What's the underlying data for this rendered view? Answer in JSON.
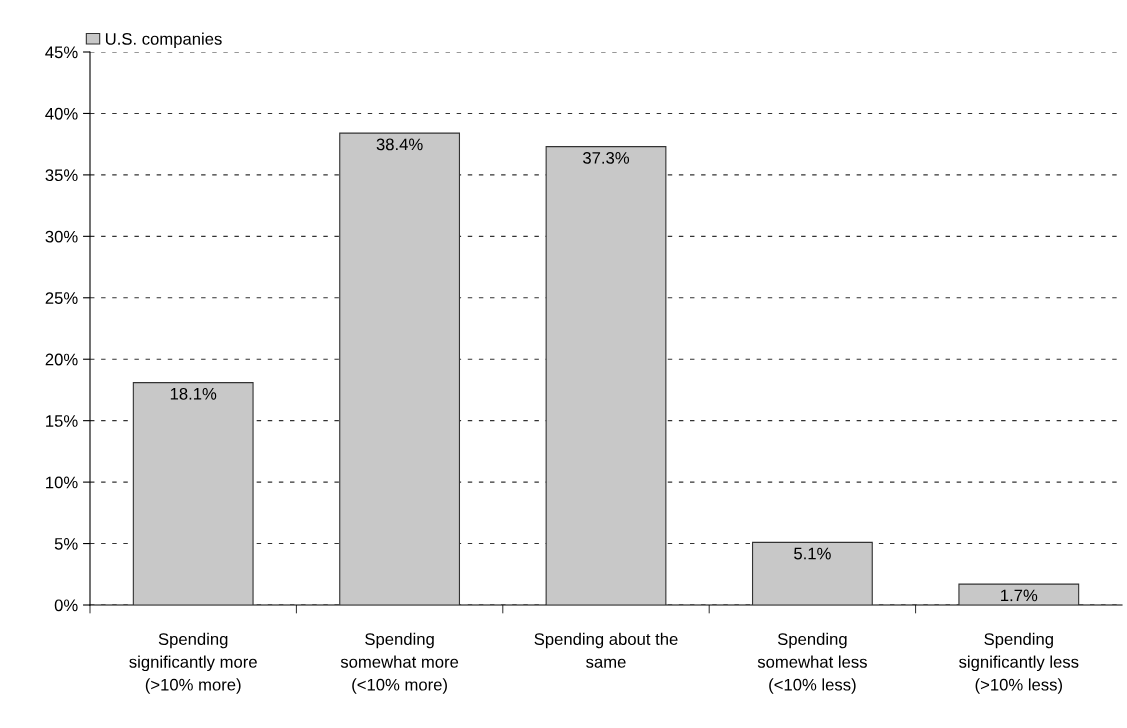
{
  "chart_data": {
    "type": "bar",
    "categories": [
      "Spending\nsignificantly more\n(>10% more)",
      "Spending\nsomewhat more\n(<10% more)",
      "Spending about the\nsame",
      "Spending\nsomewhat less\n(<10% less)",
      "Spending\nsignificantly less\n(>10% less)"
    ],
    "series": [
      {
        "name": "U.S. companies",
        "color": "#c8c8c8",
        "values": [
          18.1,
          38.4,
          37.3,
          5.1,
          1.7
        ]
      }
    ],
    "value_labels": [
      "18.1%",
      "38.4%",
      "37.3%",
      "5.1%",
      "1.7%"
    ],
    "ylim": [
      0,
      45
    ],
    "yticks": [
      {
        "value": 0,
        "label": "0%"
      },
      {
        "value": 5,
        "label": "5%"
      },
      {
        "value": 10,
        "label": "10%"
      },
      {
        "value": 15,
        "label": "15%"
      },
      {
        "value": 20,
        "label": "20%"
      },
      {
        "value": 25,
        "label": "25%"
      },
      {
        "value": 30,
        "label": "30%"
      },
      {
        "value": 35,
        "label": "35%"
      },
      {
        "value": 40,
        "label": "40%"
      },
      {
        "value": 45,
        "label": "45%"
      }
    ],
    "grid": "y",
    "legend": "top left"
  }
}
